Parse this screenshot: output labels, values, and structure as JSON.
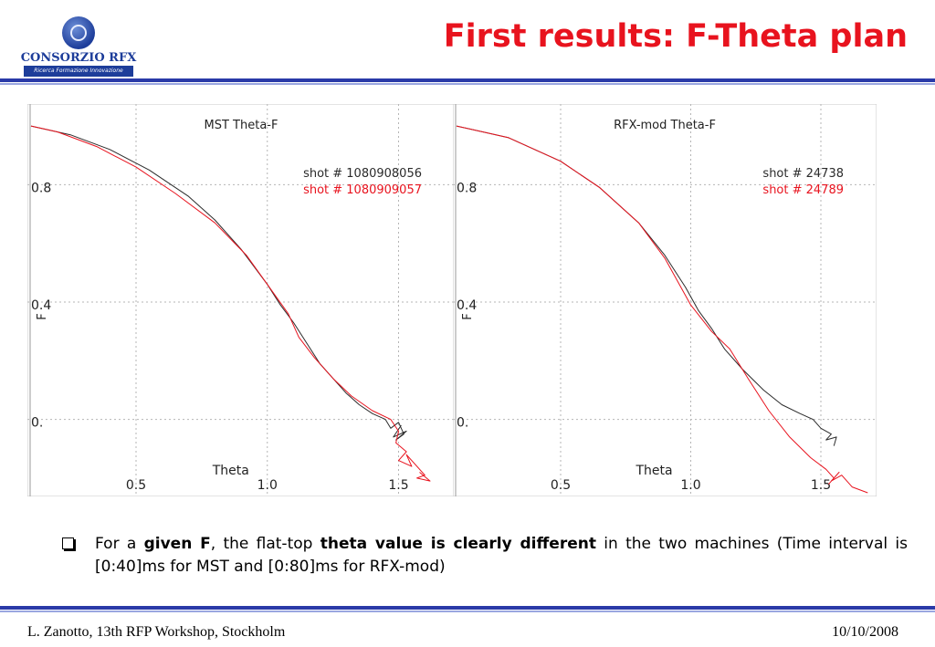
{
  "header": {
    "title": "First results: F-Theta plan",
    "logo_text": "CONSORZIO RFX",
    "logo_subtext": "Ricerca Formazione Innovazione"
  },
  "colors": {
    "title": "#e8131e",
    "rule": "#2a3aa8",
    "series_black": "#2b2b2b",
    "series_red": "#e8131e"
  },
  "chart_data": [
    {
      "type": "line",
      "title": "MST Theta-F",
      "xlabel": "Theta",
      "ylabel": "F",
      "xlim": [
        0.1,
        1.7
      ],
      "ylim": [
        -0.25,
        1.05
      ],
      "xticks": [
        {
          "v": 0.5,
          "label": "0.5"
        },
        {
          "v": 1.0,
          "label": "1.0"
        },
        {
          "v": 1.5,
          "label": "1.5"
        }
      ],
      "yticks": [
        {
          "v": 0.8,
          "label": "0.8"
        },
        {
          "v": 0.4,
          "label": "0.4"
        },
        {
          "v": 0.0,
          "label": "0."
        }
      ],
      "grid": true,
      "legend_placement": "top-right",
      "series": [
        {
          "name": "shot # 1080908056",
          "color": "#2b2b2b",
          "x": [
            0.1,
            0.25,
            0.4,
            0.55,
            0.7,
            0.8,
            0.9,
            1.0,
            1.05,
            1.1,
            1.15,
            1.2,
            1.25,
            1.3,
            1.35,
            1.4,
            1.45,
            1.47,
            1.5,
            1.52,
            1.49,
            1.53,
            1.48,
            1.51
          ],
          "y": [
            1.0,
            0.97,
            0.92,
            0.85,
            0.76,
            0.68,
            0.58,
            0.46,
            0.39,
            0.33,
            0.26,
            0.19,
            0.14,
            0.09,
            0.05,
            0.02,
            0.0,
            -0.03,
            -0.01,
            -0.05,
            -0.07,
            -0.04,
            -0.06,
            -0.02
          ]
        },
        {
          "name": "shot # 1080909057",
          "color": "#e8131e",
          "x": [
            0.1,
            0.2,
            0.35,
            0.5,
            0.65,
            0.8,
            0.92,
            1.0,
            1.08,
            1.12,
            1.18,
            1.25,
            1.32,
            1.4,
            1.47,
            1.5,
            1.49,
            1.53,
            1.5,
            1.55,
            1.53,
            1.6,
            1.57,
            1.62,
            1.58
          ],
          "y": [
            1.0,
            0.98,
            0.93,
            0.86,
            0.77,
            0.67,
            0.56,
            0.46,
            0.36,
            0.28,
            0.21,
            0.14,
            0.08,
            0.03,
            0.0,
            -0.04,
            -0.08,
            -0.11,
            -0.14,
            -0.16,
            -0.12,
            -0.19,
            -0.2,
            -0.21,
            -0.18
          ]
        }
      ]
    },
    {
      "type": "line",
      "title": "RFX-mod Theta-F",
      "xlabel": "Theta",
      "ylabel": "F",
      "xlim": [
        0.1,
        1.7
      ],
      "ylim": [
        -0.25,
        1.05
      ],
      "xticks": [
        {
          "v": 0.5,
          "label": "0.5"
        },
        {
          "v": 1.0,
          "label": "1.0"
        },
        {
          "v": 1.5,
          "label": "1.5"
        }
      ],
      "yticks": [
        {
          "v": 0.8,
          "label": "0.8"
        },
        {
          "v": 0.4,
          "label": "0.4"
        },
        {
          "v": 0.0,
          "label": "0."
        }
      ],
      "grid": true,
      "legend_placement": "top-right",
      "series": [
        {
          "name": "shot # 24738",
          "color": "#2b2b2b",
          "x": [
            0.1,
            0.3,
            0.5,
            0.65,
            0.8,
            0.9,
            0.98,
            1.03,
            1.08,
            1.13,
            1.2,
            1.28,
            1.35,
            1.42,
            1.47,
            1.5,
            1.54,
            1.52,
            1.56,
            1.55
          ],
          "y": [
            1.0,
            0.96,
            0.88,
            0.79,
            0.67,
            0.56,
            0.45,
            0.37,
            0.31,
            0.24,
            0.17,
            0.1,
            0.05,
            0.02,
            0.0,
            -0.03,
            -0.05,
            -0.07,
            -0.06,
            -0.09
          ]
        },
        {
          "name": "shot # 24789",
          "color": "#e8131e",
          "x": [
            0.1,
            0.3,
            0.5,
            0.65,
            0.8,
            0.9,
            1.0,
            1.08,
            1.15,
            1.22,
            1.3,
            1.38,
            1.46,
            1.52,
            1.55,
            1.53,
            1.57,
            1.54,
            1.58,
            1.62,
            1.68
          ],
          "y": [
            1.0,
            0.96,
            0.88,
            0.79,
            0.67,
            0.55,
            0.39,
            0.3,
            0.24,
            0.14,
            0.03,
            -0.06,
            -0.13,
            -0.17,
            -0.2,
            -0.22,
            -0.18,
            -0.21,
            -0.19,
            -0.23,
            -0.25
          ]
        }
      ]
    }
  ],
  "bullet": {
    "text_1": "For a ",
    "bold_1": "given F",
    "text_2": ", the flat-top ",
    "bold_2": "theta value is clearly different",
    "text_3": " in the two machines (Time interval is [0:40]ms for MST and [0:80]ms for RFX-mod)"
  },
  "footer": {
    "left": "L. Zanotto, 13th RFP Workshop, Stockholm",
    "right": "10/10/2008"
  }
}
